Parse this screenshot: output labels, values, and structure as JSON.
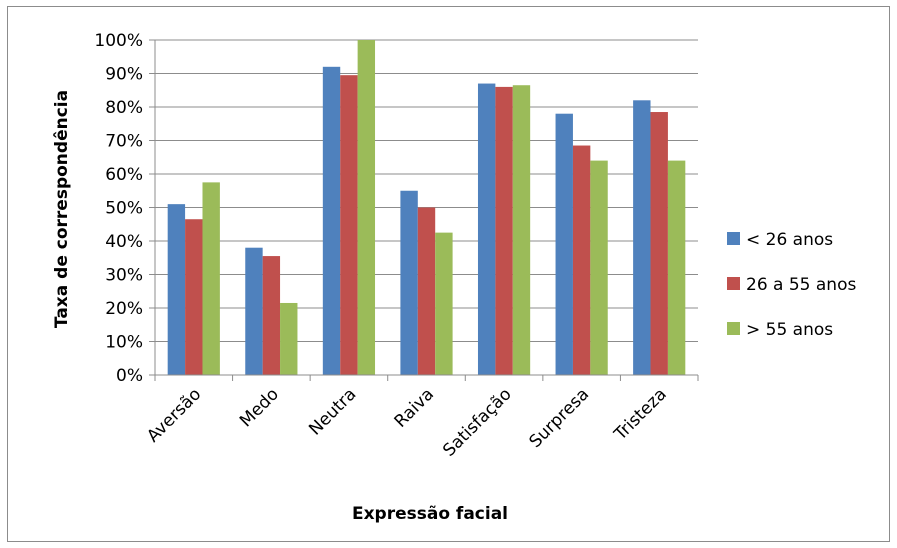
{
  "chart_data": {
    "type": "bar",
    "xlabel": "Expressão facial",
    "ylabel": "Taxa de correspondência",
    "ylim": [
      0,
      100
    ],
    "ytick_step": 10,
    "ytick_suffix": "%",
    "grid": "horizontal",
    "legend_position": "right",
    "categories": [
      "Aversão",
      "Medo",
      "Neutra",
      "Raiva",
      "Satisfação",
      "Surpresa",
      "Tristeza"
    ],
    "series": [
      {
        "name": "< 26 anos",
        "color": "#4f81bd",
        "values": [
          51,
          38,
          92,
          55,
          87,
          78,
          82
        ]
      },
      {
        "name": "26 a 55 anos",
        "color": "#c0504d",
        "values": [
          46.5,
          35.5,
          89.5,
          50,
          86,
          68.5,
          78.5
        ]
      },
      {
        "name": "> 55 anos",
        "color": "#9bbb59",
        "values": [
          57.5,
          21.5,
          100,
          42.5,
          86.5,
          64,
          64
        ]
      }
    ]
  }
}
